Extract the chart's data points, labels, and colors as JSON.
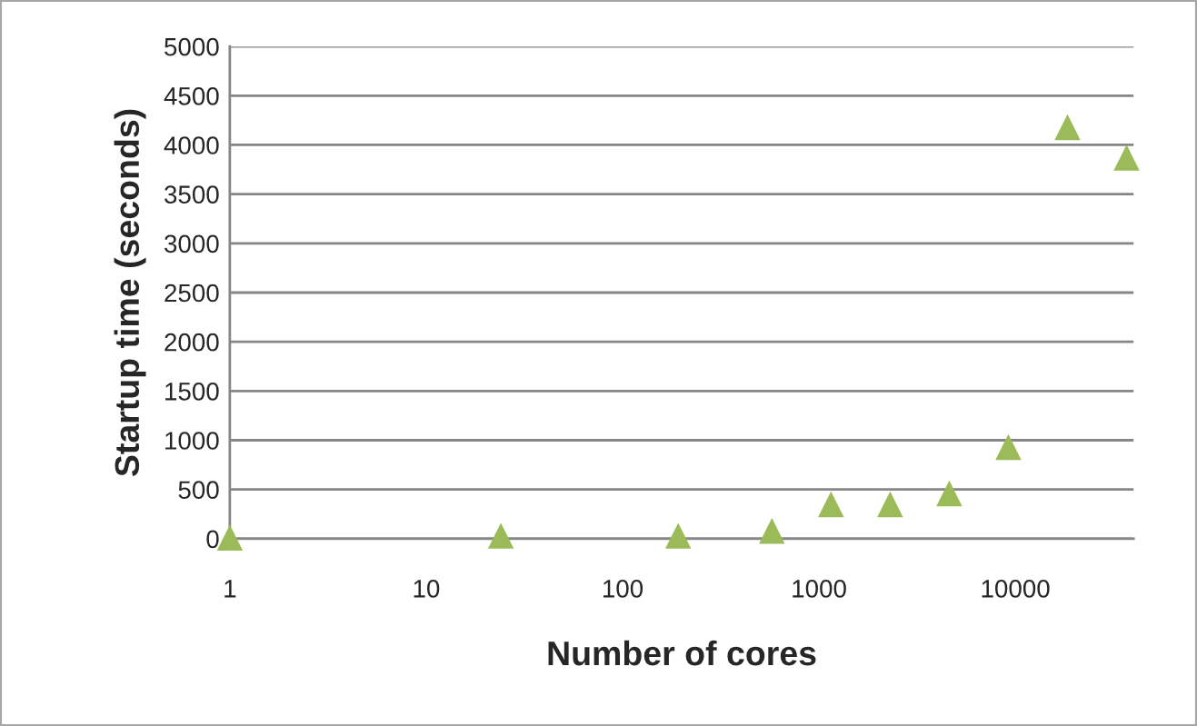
{
  "chart_data": {
    "type": "scatter",
    "xlabel": "Number of cores",
    "ylabel": "Startup time (seconds)",
    "x": [
      1,
      24,
      192,
      576,
      1152,
      2304,
      4608,
      9216,
      18432,
      36864
    ],
    "values": [
      10,
      30,
      30,
      80,
      350,
      350,
      460,
      930,
      4180,
      3870
    ],
    "color": "#9bbb59",
    "marker": "triangle",
    "log": "x",
    "xlim": [
      1,
      40000
    ],
    "xticks": [
      1,
      10,
      100,
      1000,
      10000
    ],
    "ylim": [
      0,
      5000
    ],
    "yticks": [
      0,
      500,
      1000,
      1500,
      2000,
      2500,
      3000,
      3500,
      4000,
      4500,
      5000
    ],
    "grid": "y",
    "legend": false
  }
}
